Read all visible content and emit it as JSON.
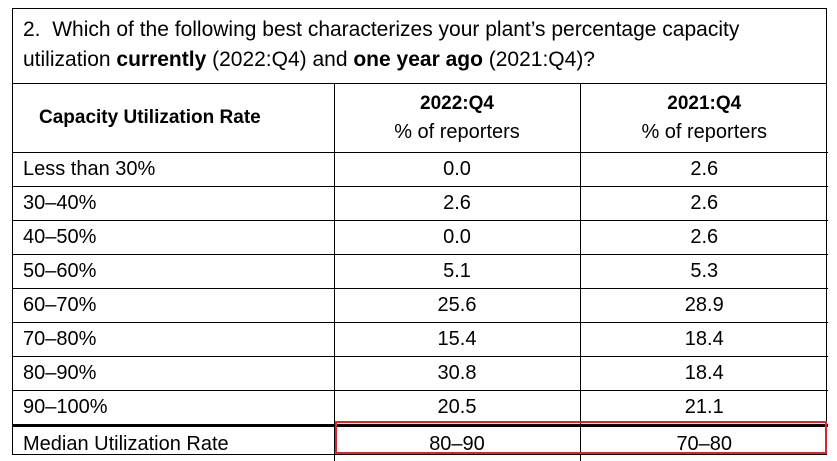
{
  "question": {
    "number": "2.",
    "text_before": "Which of the following best characterizes your plant’s percentage capacity utilization ",
    "bold1": "currently",
    "text_mid": " (2022:Q4) and ",
    "bold2": "one year ago",
    "text_after": " (2021:Q4)?"
  },
  "header": {
    "col1": "Capacity Utilization Rate",
    "col2_title": "2022:Q4",
    "col2_sub": "% of reporters",
    "col3_title": "2021:Q4",
    "col3_sub": "% of reporters"
  },
  "rows": [
    {
      "label": "Less than 30%",
      "q2022": "0.0",
      "q2021": "2.6"
    },
    {
      "label": "30–40%",
      "q2022": "2.6",
      "q2021": "2.6"
    },
    {
      "label": "40–50%",
      "q2022": "0.0",
      "q2021": "2.6"
    },
    {
      "label": "50–60%",
      "q2022": "5.1",
      "q2021": "5.3"
    },
    {
      "label": "60–70%",
      "q2022": "25.6",
      "q2021": "28.9"
    },
    {
      "label": "70–80%",
      "q2022": "15.4",
      "q2021": "18.4"
    },
    {
      "label": "80–90%",
      "q2022": "30.8",
      "q2021": "18.4"
    },
    {
      "label": "90–100%",
      "q2022": "20.5",
      "q2021": "21.1"
    }
  ],
  "median": {
    "label": "Median Utilization Rate",
    "q2022": "80–90",
    "q2021": "70–80"
  },
  "colors": {
    "highlight": "#d9262c"
  }
}
